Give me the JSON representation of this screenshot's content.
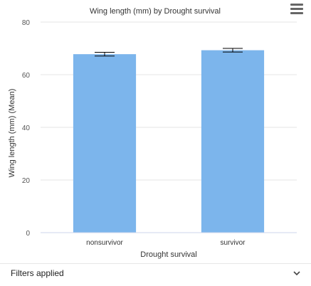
{
  "chart_data": {
    "type": "bar",
    "title": "Wing length (mm) by Drought survival",
    "xlabel": "Drought survival",
    "ylabel": "Wing length (mm) (Mean)",
    "categories": [
      "nonsurvivor",
      "survivor"
    ],
    "values": [
      67.8,
      69.3
    ],
    "error": [
      [
        67.1,
        68.5
      ],
      [
        68.6,
        70.0
      ]
    ],
    "ylim": [
      0,
      80
    ],
    "yticks": [
      0,
      20,
      40,
      60,
      80
    ],
    "bar_color": "#7cb5ec",
    "grid": true
  },
  "menu": {
    "icon": "hamburger-menu-icon"
  },
  "filters": {
    "label": "Filters applied",
    "icon": "chevron-down-icon"
  }
}
